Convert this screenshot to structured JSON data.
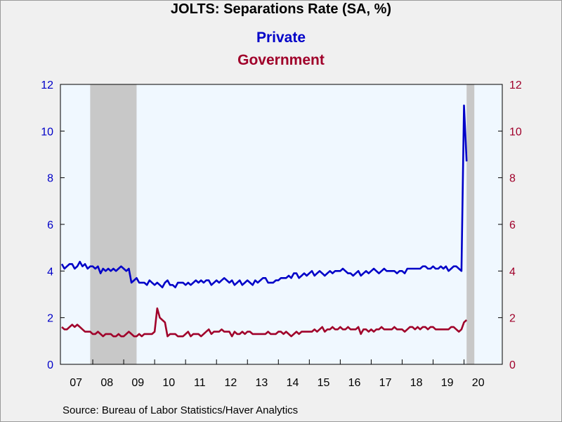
{
  "title": "JOLTS: Separations Rate (SA, %)",
  "source": "Source:  Bureau of Labor Statistics/Haver Analytics",
  "colors": {
    "private": "#0000c8",
    "government": "#a0002a",
    "recession": "#c8c8c8",
    "plot_bg": "#f0f8ff"
  },
  "chart_data": {
    "type": "line",
    "title": "JOLTS: Separations Rate (SA, %)",
    "xlabel": "",
    "ylabel": "",
    "x_start": "2007-01",
    "frequency": "monthly",
    "x_tick_labels": [
      "07",
      "08",
      "09",
      "10",
      "11",
      "12",
      "13",
      "14",
      "15",
      "16",
      "17",
      "18",
      "19",
      "20"
    ],
    "ylim_left": [
      0,
      12
    ],
    "ylim_right": [
      0,
      12
    ],
    "y_ticks": [
      0,
      2,
      4,
      6,
      8,
      10,
      12
    ],
    "grid": false,
    "legend": "title-area",
    "recessions": [
      {
        "start": "2007-12",
        "end": "2009-06"
      },
      {
        "start": "2020-02",
        "end": "2020-05"
      }
    ],
    "series": [
      {
        "name": "Private",
        "axis": "left",
        "values": [
          4.3,
          4.1,
          4.2,
          4.3,
          4.3,
          4.1,
          4.2,
          4.4,
          4.2,
          4.3,
          4.1,
          4.2,
          4.2,
          4.1,
          4.2,
          3.9,
          4.1,
          4.0,
          4.1,
          4.0,
          4.1,
          4.0,
          4.1,
          4.2,
          4.1,
          4.0,
          4.1,
          3.5,
          3.6,
          3.7,
          3.5,
          3.5,
          3.5,
          3.4,
          3.6,
          3.5,
          3.4,
          3.5,
          3.4,
          3.3,
          3.5,
          3.6,
          3.4,
          3.4,
          3.3,
          3.5,
          3.5,
          3.5,
          3.4,
          3.5,
          3.4,
          3.5,
          3.6,
          3.5,
          3.6,
          3.5,
          3.6,
          3.6,
          3.4,
          3.5,
          3.6,
          3.5,
          3.6,
          3.7,
          3.6,
          3.5,
          3.6,
          3.4,
          3.5,
          3.6,
          3.4,
          3.5,
          3.6,
          3.5,
          3.4,
          3.6,
          3.5,
          3.6,
          3.7,
          3.7,
          3.5,
          3.5,
          3.5,
          3.6,
          3.6,
          3.7,
          3.7,
          3.7,
          3.8,
          3.7,
          3.9,
          3.9,
          3.7,
          3.8,
          3.9,
          3.8,
          3.9,
          4.0,
          3.8,
          3.9,
          4.0,
          3.9,
          3.8,
          3.9,
          4.0,
          3.9,
          4.0,
          4.0,
          4.0,
          4.1,
          4.0,
          3.9,
          3.9,
          3.8,
          3.9,
          4.0,
          3.8,
          3.9,
          4.0,
          3.9,
          4.0,
          4.1,
          4.0,
          3.9,
          4.0,
          4.1,
          4.0,
          4.0,
          4.0,
          4.0,
          3.9,
          4.0,
          4.0,
          3.9,
          4.1,
          4.1,
          4.1,
          4.1,
          4.1,
          4.1,
          4.2,
          4.2,
          4.1,
          4.1,
          4.2,
          4.1,
          4.1,
          4.2,
          4.1,
          4.2,
          4.0,
          4.1,
          4.2,
          4.2,
          4.1,
          4.0,
          11.1,
          8.7
        ]
      },
      {
        "name": "Government",
        "axis": "right",
        "values": [
          1.6,
          1.5,
          1.5,
          1.6,
          1.7,
          1.6,
          1.7,
          1.6,
          1.5,
          1.4,
          1.4,
          1.4,
          1.3,
          1.3,
          1.4,
          1.3,
          1.2,
          1.3,
          1.3,
          1.3,
          1.2,
          1.2,
          1.3,
          1.2,
          1.2,
          1.3,
          1.4,
          1.3,
          1.2,
          1.2,
          1.3,
          1.2,
          1.3,
          1.3,
          1.3,
          1.3,
          1.4,
          2.4,
          2.0,
          1.9,
          1.8,
          1.2,
          1.3,
          1.3,
          1.3,
          1.2,
          1.2,
          1.2,
          1.3,
          1.4,
          1.2,
          1.3,
          1.3,
          1.3,
          1.2,
          1.3,
          1.4,
          1.5,
          1.3,
          1.4,
          1.4,
          1.4,
          1.5,
          1.4,
          1.4,
          1.4,
          1.2,
          1.4,
          1.3,
          1.3,
          1.4,
          1.3,
          1.4,
          1.4,
          1.3,
          1.3,
          1.3,
          1.3,
          1.3,
          1.3,
          1.4,
          1.3,
          1.3,
          1.3,
          1.4,
          1.4,
          1.3,
          1.4,
          1.3,
          1.2,
          1.3,
          1.4,
          1.3,
          1.4,
          1.4,
          1.4,
          1.4,
          1.4,
          1.5,
          1.4,
          1.5,
          1.6,
          1.4,
          1.5,
          1.5,
          1.6,
          1.5,
          1.5,
          1.6,
          1.5,
          1.5,
          1.6,
          1.5,
          1.5,
          1.5,
          1.6,
          1.3,
          1.5,
          1.5,
          1.4,
          1.5,
          1.4,
          1.5,
          1.5,
          1.6,
          1.5,
          1.5,
          1.5,
          1.5,
          1.6,
          1.5,
          1.5,
          1.5,
          1.4,
          1.5,
          1.6,
          1.6,
          1.5,
          1.6,
          1.5,
          1.6,
          1.6,
          1.5,
          1.6,
          1.6,
          1.5,
          1.5,
          1.5,
          1.5,
          1.5,
          1.5,
          1.6,
          1.6,
          1.5,
          1.4,
          1.5,
          1.8,
          1.9
        ]
      }
    ]
  }
}
